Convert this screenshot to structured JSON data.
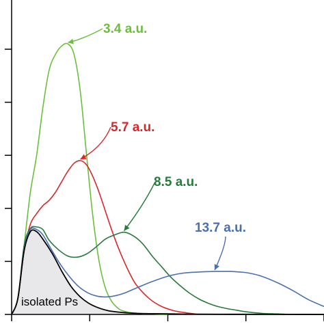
{
  "chart_data": {
    "type": "line",
    "title": "",
    "xlabel": "",
    "ylabel": "",
    "xlim": [
      0,
      10
    ],
    "ylim": [
      0,
      5
    ],
    "grid": false,
    "series": [
      {
        "name": "3.4 a.u.",
        "color": "#6cbf3c",
        "x": [
          0,
          0.2,
          0.4,
          0.6,
          0.8,
          1.0,
          1.2,
          1.4,
          1.6,
          1.8,
          2.0,
          2.2,
          2.4,
          2.6,
          2.8,
          3.0,
          3.2,
          3.4,
          3.6,
          4.0,
          4.5,
          5.0
        ],
        "y": [
          0,
          0.3,
          1.3,
          2.3,
          3.0,
          3.9,
          4.6,
          4.9,
          5.06,
          5.1,
          4.9,
          4.2,
          3.0,
          1.85,
          1.0,
          0.5,
          0.25,
          0.12,
          0.06,
          0.02,
          0.01,
          0.0
        ]
      },
      {
        "name": "5.7 a.u.",
        "color": "#d9262a",
        "x": [
          0,
          0.2,
          0.4,
          0.6,
          0.8,
          1.0,
          1.2,
          1.4,
          1.6,
          1.8,
          2.0,
          2.2,
          2.4,
          2.6,
          2.8,
          3.0,
          3.2,
          3.4,
          3.6,
          3.8,
          4.0,
          4.4,
          4.8,
          5.2,
          5.6,
          6.0
        ],
        "y": [
          0,
          0.3,
          1.2,
          1.7,
          1.9,
          2.05,
          2.15,
          2.3,
          2.5,
          2.7,
          2.85,
          2.9,
          2.82,
          2.6,
          2.3,
          1.95,
          1.6,
          1.28,
          1.0,
          0.75,
          0.55,
          0.3,
          0.15,
          0.07,
          0.03,
          0.0
        ]
      },
      {
        "name": "8.5 a.u.",
        "color": "#267a3b",
        "x": [
          0,
          0.2,
          0.4,
          0.6,
          0.8,
          1.0,
          1.2,
          1.5,
          1.8,
          2.1,
          2.4,
          2.7,
          3.0,
          3.3,
          3.6,
          3.9,
          4.2,
          4.5,
          4.8,
          5.1,
          5.4,
          5.7,
          6.0,
          6.3,
          6.6,
          6.9,
          7.2,
          7.5,
          8.0,
          8.5,
          9.0
        ],
        "y": [
          0,
          0.3,
          1.3,
          1.62,
          1.65,
          1.6,
          1.4,
          1.22,
          1.1,
          1.08,
          1.14,
          1.27,
          1.42,
          1.5,
          1.55,
          1.48,
          1.33,
          1.1,
          0.9,
          0.7,
          0.54,
          0.4,
          0.29,
          0.21,
          0.15,
          0.11,
          0.08,
          0.05,
          0.02,
          0.01,
          0.0
        ]
      },
      {
        "name": "13.7 a.u.",
        "color": "#4a6fb0",
        "x": [
          0,
          0.2,
          0.4,
          0.6,
          0.8,
          1.0,
          1.2,
          1.5,
          1.8,
          2.1,
          2.4,
          2.7,
          3.0,
          3.3,
          3.6,
          4.0,
          4.5,
          5.0,
          5.5,
          6.0,
          6.5,
          7.0,
          7.3,
          7.6,
          8.0,
          8.5,
          9.0,
          9.5,
          10.0
        ],
        "y": [
          0,
          0.3,
          1.25,
          1.6,
          1.6,
          1.5,
          1.3,
          1.0,
          0.75,
          0.55,
          0.42,
          0.35,
          0.33,
          0.35,
          0.4,
          0.5,
          0.62,
          0.72,
          0.78,
          0.8,
          0.81,
          0.81,
          0.8,
          0.78,
          0.72,
          0.6,
          0.45,
          0.28,
          0.15
        ]
      },
      {
        "name": "isolated Ps",
        "color": "#000000",
        "x": [
          0,
          0.2,
          0.4,
          0.6,
          0.8,
          1.0,
          1.3,
          1.6,
          1.9,
          2.2,
          2.5,
          2.8,
          3.1,
          3.4,
          3.7,
          4.0,
          4.5,
          5.0,
          5.5,
          6.0,
          7.0,
          8.0,
          9.0,
          10.0
        ],
        "y": [
          0,
          0.3,
          1.2,
          1.56,
          1.56,
          1.42,
          1.15,
          0.82,
          0.53,
          0.33,
          0.2,
          0.12,
          0.07,
          0.045,
          0.03,
          0.02,
          0.014,
          0.01,
          0.007,
          0.005,
          0.003,
          0.002,
          0.001,
          0.0
        ]
      }
    ],
    "annotations": [
      {
        "text": "3.4 a.u.",
        "series": 0,
        "x": 1.8,
        "y": 5.1
      },
      {
        "text": "5.7 a.u.",
        "series": 1,
        "x": 2.2,
        "y": 2.9
      },
      {
        "text": "8.5 a.u.",
        "series": 2,
        "x": 3.6,
        "y": 1.55
      },
      {
        "text": "13.7 a.u.",
        "series": 3,
        "x": 6.5,
        "y": 0.81
      },
      {
        "text": "isolated Ps",
        "series": 4
      }
    ],
    "shaded_area_color": "#e8e8ea",
    "x_tick_values": [
      0,
      2.5,
      5.0,
      7.5,
      10.0
    ],
    "y_tick_values": [
      0,
      1,
      2,
      3,
      4,
      5
    ]
  }
}
